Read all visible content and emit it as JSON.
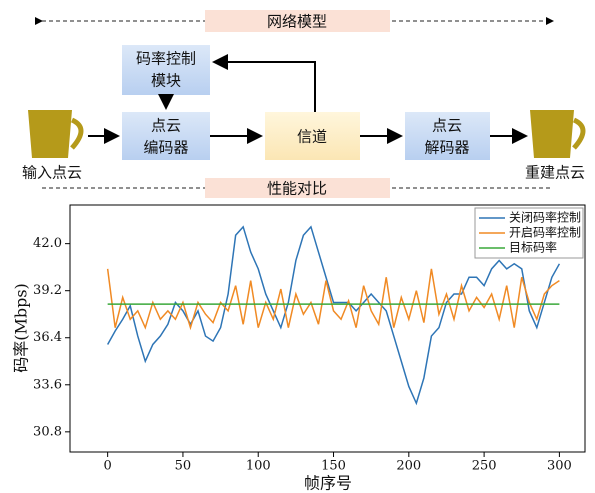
{
  "diagram": {
    "banner_top": "网络模型",
    "rate_control": [
      "码率控制",
      "模块"
    ],
    "encoder": [
      "点云",
      "编码器"
    ],
    "channel": "信道",
    "decoder": [
      "点云",
      "解码器"
    ],
    "input": "输入点云",
    "output": "重建点云",
    "banner_bottom": "性能对比"
  },
  "chart_data": {
    "type": "line",
    "xlabel": "帧序号",
    "ylabel": "码率(Mbps)",
    "x": [
      0,
      5,
      10,
      15,
      20,
      25,
      30,
      35,
      40,
      45,
      50,
      55,
      60,
      65,
      70,
      75,
      80,
      85,
      90,
      95,
      100,
      105,
      110,
      115,
      120,
      125,
      130,
      135,
      140,
      145,
      150,
      155,
      160,
      165,
      170,
      175,
      180,
      185,
      190,
      195,
      200,
      205,
      210,
      215,
      220,
      225,
      230,
      235,
      240,
      245,
      250,
      255,
      260,
      265,
      270,
      275,
      280,
      285,
      290,
      295,
      300
    ],
    "series": [
      {
        "name": "关闭码率控制",
        "color": "#2e75b6",
        "values": [
          36.0,
          36.8,
          37.5,
          38.3,
          36.5,
          35.0,
          36.0,
          36.5,
          37.2,
          38.5,
          38.0,
          37.2,
          38.0,
          36.5,
          36.2,
          37.0,
          39.0,
          42.5,
          43.0,
          41.5,
          40.5,
          39.0,
          38.0,
          37.0,
          38.5,
          41.0,
          42.5,
          43.0,
          41.5,
          40.0,
          38.5,
          38.5,
          38.5,
          38.0,
          38.5,
          39.0,
          38.5,
          38.0,
          36.5,
          35.0,
          33.5,
          32.5,
          34.0,
          36.5,
          37.0,
          38.5,
          39.0,
          39.0,
          40.0,
          40.0,
          39.5,
          40.5,
          41.0,
          40.5,
          40.8,
          40.5,
          38.0,
          37.0,
          38.5,
          40.0,
          40.8
        ]
      },
      {
        "name": "开启码率控制",
        "color": "#f08a24",
        "values": [
          40.5,
          37.0,
          38.8,
          37.5,
          38.0,
          37.0,
          38.5,
          37.5,
          38.0,
          37.5,
          38.5,
          37.0,
          38.5,
          37.8,
          37.3,
          38.5,
          38.0,
          39.5,
          37.2,
          39.8,
          37.0,
          38.5,
          37.5,
          39.3,
          37.0,
          39.0,
          37.8,
          38.5,
          37.2,
          39.8,
          38.0,
          37.5,
          38.6,
          37.0,
          39.5,
          38.0,
          37.2,
          40.0,
          37.0,
          38.8,
          37.5,
          39.2,
          37.3,
          40.5,
          37.8,
          39.0,
          37.5,
          39.5,
          38.0,
          38.8,
          38.2,
          39.0,
          37.5,
          39.5,
          37.0,
          40.0,
          38.5,
          37.5,
          39.0,
          39.5,
          39.8
        ]
      },
      {
        "name": "目标码率",
        "color": "#3aa83a",
        "values": [
          38.4,
          38.4,
          38.4,
          38.4,
          38.4,
          38.4,
          38.4,
          38.4,
          38.4,
          38.4,
          38.4,
          38.4,
          38.4,
          38.4,
          38.4,
          38.4,
          38.4,
          38.4,
          38.4,
          38.4,
          38.4,
          38.4,
          38.4,
          38.4,
          38.4,
          38.4,
          38.4,
          38.4,
          38.4,
          38.4,
          38.4,
          38.4,
          38.4,
          38.4,
          38.4,
          38.4,
          38.4,
          38.4,
          38.4,
          38.4,
          38.4,
          38.4,
          38.4,
          38.4,
          38.4,
          38.4,
          38.4,
          38.4,
          38.4,
          38.4,
          38.4,
          38.4,
          38.4,
          38.4,
          38.4,
          38.4,
          38.4,
          38.4,
          38.4,
          38.4,
          38.4
        ]
      }
    ],
    "xlim": [
      -25,
      317
    ],
    "ylim": [
      29.6,
      44.3
    ],
    "xticks": [
      0,
      50,
      100,
      150,
      200,
      250,
      300
    ],
    "yticks": [
      30.8,
      33.6,
      36.4,
      39.2,
      {
        "value": 42,
        "label": "42.0"
      }
    ],
    "legend": "upper right"
  }
}
